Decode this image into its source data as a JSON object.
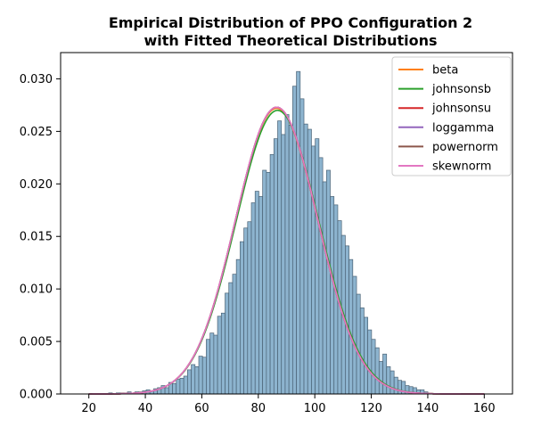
{
  "chart_data": {
    "type": "bar",
    "title_line1": "Empirical Distribution of PPO Configuration 2",
    "title_line2": "with Fitted Theoretical Distributions",
    "xlabel": "",
    "ylabel": "",
    "xlim": [
      10,
      170
    ],
    "ylim": [
      0,
      0.0325
    ],
    "xticks": [
      20,
      40,
      60,
      80,
      100,
      120,
      140,
      160
    ],
    "xtick_labels": [
      "20",
      "40",
      "60",
      "80",
      "100",
      "120",
      "140",
      "160"
    ],
    "yticks": [
      0.0,
      0.005,
      0.01,
      0.015,
      0.02,
      0.025,
      0.03
    ],
    "ytick_labels": [
      "0.000",
      "0.005",
      "0.010",
      "0.015",
      "0.020",
      "0.025",
      "0.030"
    ],
    "grid": false,
    "legend_position": "top-right",
    "histogram": {
      "bin_edges": [
        27,
        28.33,
        29.66,
        30.99,
        32.32,
        33.65,
        34.98,
        36.31,
        37.64,
        38.97,
        40.3,
        41.63,
        42.96,
        44.29,
        45.62,
        46.95,
        48.28,
        49.61,
        50.94,
        52.27,
        53.6,
        54.93,
        56.26,
        57.59,
        58.92,
        60.25,
        61.58,
        62.91,
        64.24,
        65.57,
        66.9,
        68.23,
        69.56,
        70.89,
        72.22,
        73.55,
        74.88,
        76.21,
        77.54,
        78.87,
        80.2,
        81.53,
        82.86,
        84.19,
        85.52,
        86.85,
        88.18,
        89.51,
        90.84,
        92.17,
        93.5,
        94.83,
        96.16,
        97.49,
        98.82,
        100.15,
        101.48,
        102.81,
        104.14,
        105.47,
        106.8,
        108.13,
        109.46,
        110.79,
        112.12,
        113.45,
        114.78,
        116.11,
        117.44,
        118.77,
        120.1,
        121.43,
        122.76,
        124.09,
        125.42,
        126.75,
        128.08,
        129.41,
        130.74,
        132.07,
        133.4,
        134.73,
        136.06,
        137.39,
        138.72,
        140.05
      ],
      "density": [
        0.0001,
        0.0,
        0.0001,
        0.0001,
        0.0001,
        0.0002,
        0.0001,
        0.0002,
        0.0002,
        0.0003,
        0.0004,
        0.0003,
        0.0005,
        0.0006,
        0.0008,
        0.0006,
        0.0011,
        0.001,
        0.0014,
        0.0015,
        0.0017,
        0.0023,
        0.0028,
        0.0026,
        0.0036,
        0.0035,
        0.0052,
        0.0058,
        0.0056,
        0.0074,
        0.0077,
        0.0096,
        0.0106,
        0.0114,
        0.0128,
        0.0145,
        0.0158,
        0.0164,
        0.0182,
        0.0193,
        0.0188,
        0.0213,
        0.0211,
        0.0228,
        0.0243,
        0.026,
        0.0247,
        0.0266,
        0.0256,
        0.0293,
        0.0307,
        0.0281,
        0.0257,
        0.0252,
        0.0236,
        0.0243,
        0.0225,
        0.0202,
        0.0213,
        0.0188,
        0.018,
        0.0165,
        0.0151,
        0.0141,
        0.0128,
        0.0112,
        0.0095,
        0.0082,
        0.0073,
        0.0061,
        0.0052,
        0.0044,
        0.0031,
        0.0038,
        0.0026,
        0.0022,
        0.0016,
        0.0013,
        0.0012,
        0.0008,
        0.0007,
        0.0006,
        0.0004,
        0.0004,
        0.0002
      ],
      "fill_color": "#8db4cf",
      "edge_color": "#4a6275"
    },
    "series": [
      {
        "name": "beta",
        "color": "#ff7f0e",
        "type": "line",
        "peak": 0.0272,
        "mean": 86.5,
        "sd": 14.6
      },
      {
        "name": "johnsonsb",
        "color": "#2ca02c",
        "type": "line",
        "peak": 0.027,
        "mean": 86.8,
        "sd": 14.7
      },
      {
        "name": "johnsonsu",
        "color": "#d62728",
        "type": "line",
        "peak": 0.0273,
        "mean": 86.5,
        "sd": 14.6
      },
      {
        "name": "loggamma",
        "color": "#9467bd",
        "type": "line",
        "peak": 0.0273,
        "mean": 86.5,
        "sd": 14.6
      },
      {
        "name": "powernorm",
        "color": "#8c564b",
        "type": "line",
        "peak": 0.0273,
        "mean": 86.5,
        "sd": 14.6
      },
      {
        "name": "skewnorm",
        "color": "#e377c2",
        "type": "line",
        "peak": 0.0273,
        "mean": 86.5,
        "sd": 14.6
      }
    ]
  }
}
